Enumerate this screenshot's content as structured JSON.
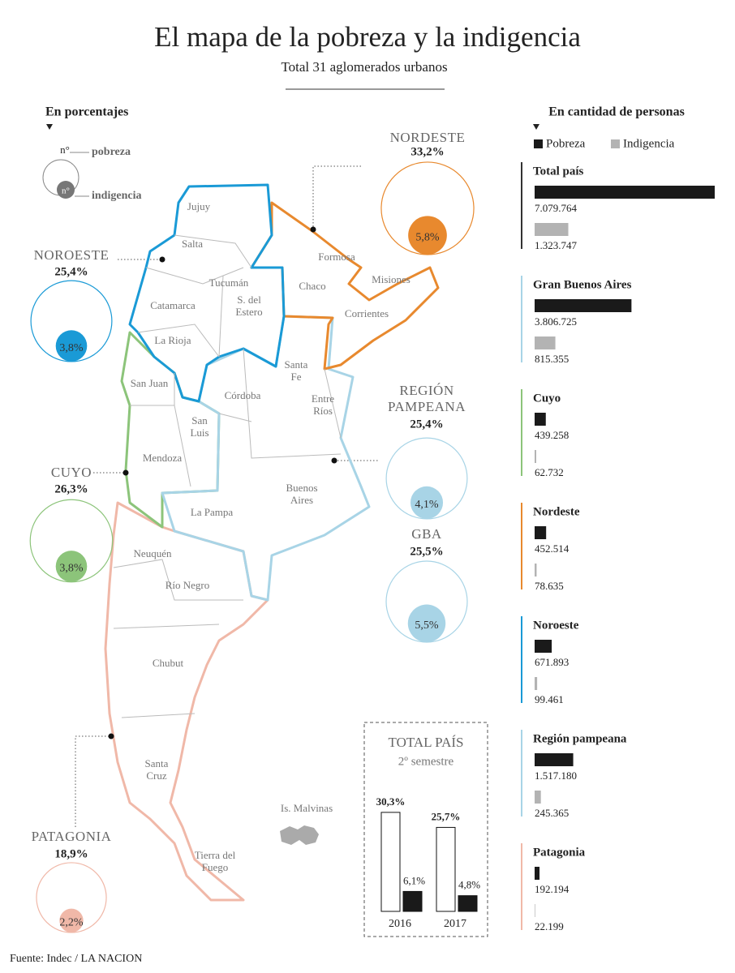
{
  "title": "El mapa de la pobreza y la indigencia",
  "subtitle": "Total 31 aglomerados urbanos",
  "map": {
    "legend": {
      "heading": "En porcentajes",
      "sample_poverty": "n°",
      "poverty": "pobreza",
      "sample_indigence": "n°",
      "indigence": "indigencia"
    },
    "regions": [
      {
        "name": "NORDESTE",
        "color": "#e8892e",
        "poverty": 33.2,
        "poverty_label": "33,2%",
        "indigence": 5.8,
        "indigence_label": "5,8%"
      },
      {
        "name": "NOROESTE",
        "color": "#1a9ad6",
        "poverty": 25.4,
        "poverty_label": "25,4%",
        "indigence": 3.8,
        "indigence_label": "3,8%"
      },
      {
        "name": "CUYO",
        "color": "#8cc47a",
        "poverty": 26.3,
        "poverty_label": "26,3%",
        "indigence": 3.8,
        "indigence_label": "3,8%"
      },
      {
        "name": "REGIÓN PAMPEANA",
        "color": "#a8d4e6",
        "poverty": 25.4,
        "poverty_label": "25,4%",
        "indigence": 4.1,
        "indigence_label": "4,1%"
      },
      {
        "name": "GBA",
        "color": "#a8d4e6",
        "poverty": 25.5,
        "poverty_label": "25,5%",
        "indigence": 5.5,
        "indigence_label": "5,5%"
      },
      {
        "name": "PATAGONIA",
        "color": "#f0b8a8",
        "poverty": 18.9,
        "poverty_label": "18,9%",
        "indigence": 2.2,
        "indigence_label": "2,2%"
      }
    ],
    "provinces": [
      "Jujuy",
      "Salta",
      "Tucumán",
      "Catamarca",
      "S. del Estero",
      "Formosa",
      "Chaco",
      "Misiones",
      "Corrientes",
      "La Rioja",
      "Santa Fe",
      "Entre Ríos",
      "San Juan",
      "Córdoba",
      "San Luis",
      "Mendoza",
      "La Pampa",
      "Buenos Aires",
      "Neuquén",
      "Río Negro",
      "Chubut",
      "Santa Cruz",
      "Tierra del Fuego"
    ],
    "islands": "Is. Malvinas"
  },
  "chart_data": [
    {
      "type": "bar",
      "orientation": "horizontal",
      "title": "En cantidad de personas",
      "categories": [
        "Total país",
        "Gran Buenos Aires",
        "Cuyo",
        "Nordeste",
        "Noroeste",
        "Región pampeana",
        "Patagonia"
      ],
      "category_colors": [
        "#333333",
        "#a8d4e6",
        "#8cc47a",
        "#e8892e",
        "#1a9ad6",
        "#a8d4e6",
        "#f0b8a8"
      ],
      "series": [
        {
          "name": "Pobreza",
          "color": "#1a1a1a",
          "values": [
            7079764,
            3806725,
            439258,
            452514,
            671893,
            1517180,
            192194
          ],
          "value_labels": [
            "7.079.764",
            "3.806.725",
            "439.258",
            "452.514",
            "671.893",
            "1.517.180",
            "192.194"
          ]
        },
        {
          "name": "Indigencia",
          "color": "#b3b3b3",
          "values": [
            1323747,
            815355,
            62732,
            78635,
            99461,
            245365,
            22199
          ],
          "value_labels": [
            "1.323.747",
            "815.355",
            "62.732",
            "78.635",
            "99.461",
            "245.365",
            "22.199"
          ]
        }
      ]
    },
    {
      "type": "bar",
      "orientation": "vertical",
      "title": "TOTAL PAÍS",
      "subtitle": "2º semestre",
      "categories": [
        "2016",
        "2017"
      ],
      "series": [
        {
          "color": "#ffffff",
          "values": [
            30.3,
            25.7
          ],
          "value_labels": [
            "30,3%",
            "25,7%"
          ]
        },
        {
          "color": "#1a1a1a",
          "values": [
            6.1,
            4.8
          ],
          "value_labels": [
            "6,1%",
            "4,8%"
          ]
        }
      ]
    }
  ],
  "source": "Fuente: Indec / LA NACION"
}
